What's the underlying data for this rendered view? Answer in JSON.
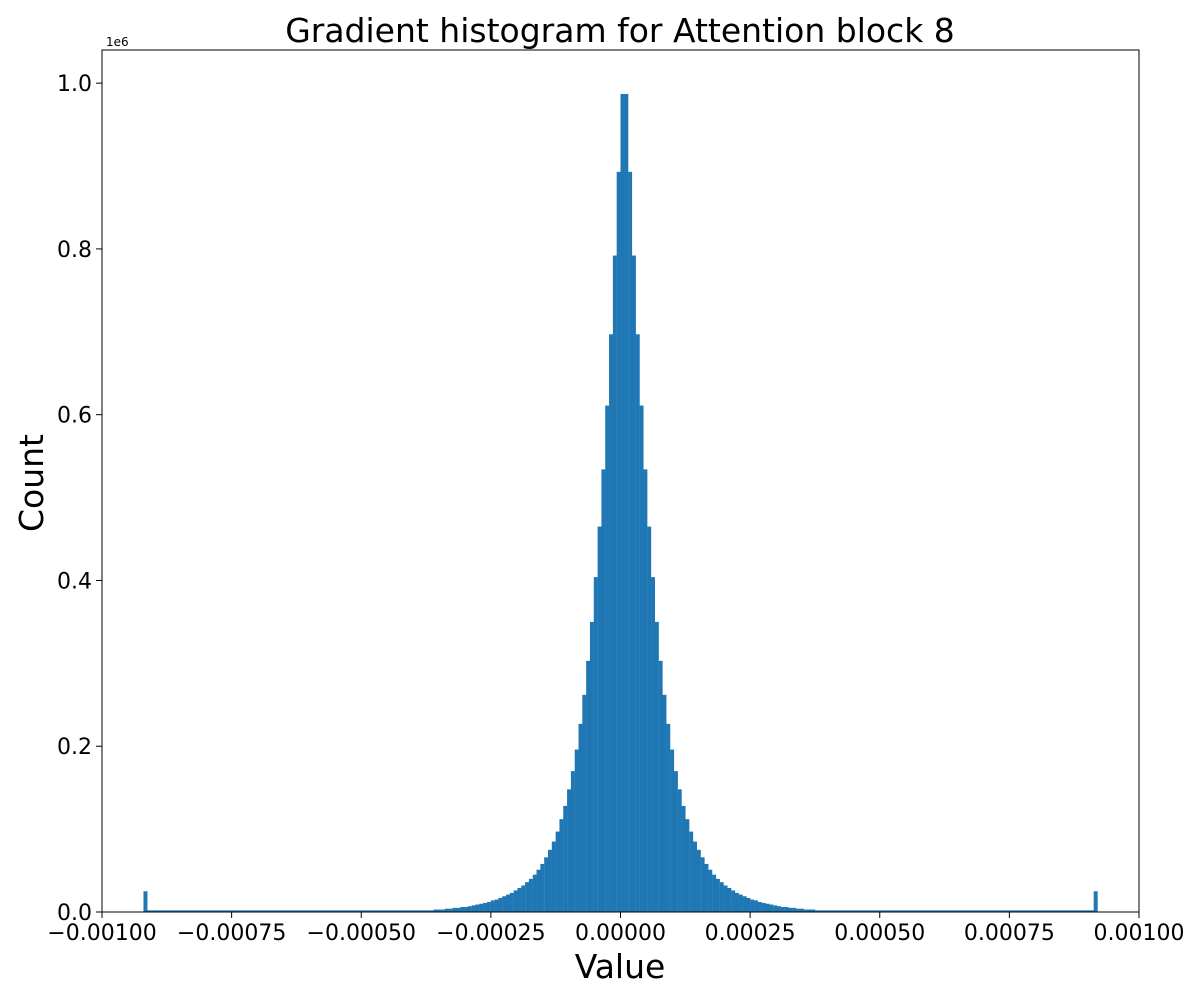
{
  "chart_data": {
    "type": "bar",
    "title": "Gradient histogram for Attention block 8",
    "xlabel": "Value",
    "ylabel": "Count",
    "y_offset_label": "1e6",
    "xlim": [
      -0.001,
      0.001
    ],
    "ylim": [
      0,
      1.04
    ],
    "y_scale_note": "y values in units of 1e6",
    "xticks": [
      -0.001,
      -0.00075,
      -0.0005,
      -0.00025,
      0.0,
      0.00025,
      0.0005,
      0.00075,
      0.001
    ],
    "xtick_labels": [
      "−0.00100",
      "−0.00075",
      "−0.00050",
      "−0.00025",
      "0.00000",
      "0.00025",
      "0.00050",
      "0.00075",
      "0.00100"
    ],
    "yticks": [
      0.0,
      0.2,
      0.4,
      0.6,
      0.8,
      1.0
    ],
    "ytick_labels": [
      "0.0",
      "0.2",
      "0.4",
      "0.6",
      "0.8",
      "1.0"
    ],
    "grid": false,
    "color": "#1f77b4",
    "bin_range": [
      -0.00092,
      0.00092
    ],
    "counts": [
      0.025,
      0.002,
      0.002,
      0.002,
      0.002,
      0.002,
      0.002,
      0.002,
      0.002,
      0.002,
      0.002,
      0.002,
      0.002,
      0.002,
      0.002,
      0.002,
      0.002,
      0.002,
      0.002,
      0.002,
      0.002,
      0.002,
      0.002,
      0.002,
      0.002,
      0.002,
      0.002,
      0.002,
      0.002,
      0.002,
      0.002,
      0.002,
      0.002,
      0.002,
      0.002,
      0.002,
      0.002,
      0.002,
      0.002,
      0.002,
      0.002,
      0.002,
      0.002,
      0.002,
      0.002,
      0.002,
      0.002,
      0.002,
      0.002,
      0.002,
      0.002,
      0.002,
      0.002,
      0.002,
      0.002,
      0.002,
      0.002,
      0.002,
      0.002,
      0.002,
      0.002,
      0.002,
      0.002,
      0.002,
      0.002,
      0.002,
      0.002,
      0.002,
      0.002,
      0.002,
      0.002,
      0.002,
      0.002,
      0.002,
      0.002,
      0.002,
      0.003,
      0.003,
      0.003,
      0.004,
      0.004,
      0.005,
      0.005,
      0.006,
      0.006,
      0.007,
      0.008,
      0.009,
      0.01,
      0.011,
      0.012,
      0.014,
      0.015,
      0.017,
      0.019,
      0.021,
      0.023,
      0.026,
      0.029,
      0.032,
      0.036,
      0.04,
      0.045,
      0.051,
      0.058,
      0.066,
      0.075,
      0.085,
      0.097,
      0.112,
      0.128,
      0.148,
      0.17,
      0.196,
      0.227,
      0.262,
      0.303,
      0.35,
      0.404,
      0.465,
      0.534,
      0.611,
      0.697,
      0.792,
      0.893,
      0.987,
      0.987,
      0.893,
      0.792,
      0.697,
      0.611,
      0.534,
      0.465,
      0.404,
      0.35,
      0.303,
      0.262,
      0.227,
      0.196,
      0.17,
      0.148,
      0.128,
      0.112,
      0.097,
      0.085,
      0.075,
      0.066,
      0.058,
      0.051,
      0.045,
      0.04,
      0.036,
      0.032,
      0.029,
      0.026,
      0.023,
      0.021,
      0.019,
      0.017,
      0.015,
      0.014,
      0.012,
      0.011,
      0.01,
      0.009,
      0.008,
      0.007,
      0.006,
      0.006,
      0.005,
      0.005,
      0.004,
      0.004,
      0.003,
      0.003,
      0.003,
      0.002,
      0.002,
      0.002,
      0.002,
      0.002,
      0.002,
      0.002,
      0.002,
      0.002,
      0.002,
      0.002,
      0.002,
      0.002,
      0.002,
      0.002,
      0.002,
      0.002,
      0.002,
      0.002,
      0.002,
      0.002,
      0.002,
      0.002,
      0.002,
      0.002,
      0.002,
      0.002,
      0.002,
      0.002,
      0.002,
      0.002,
      0.002,
      0.002,
      0.002,
      0.002,
      0.002,
      0.002,
      0.002,
      0.002,
      0.002,
      0.002,
      0.002,
      0.002,
      0.002,
      0.002,
      0.002,
      0.002,
      0.002,
      0.002,
      0.002,
      0.002,
      0.002,
      0.002,
      0.002,
      0.002,
      0.002,
      0.002,
      0.002,
      0.002,
      0.002,
      0.002,
      0.002,
      0.002,
      0.002,
      0.002,
      0.002,
      0.002,
      0.002,
      0.002,
      0.002,
      0.002,
      0.002,
      0.002,
      0.025
    ]
  }
}
